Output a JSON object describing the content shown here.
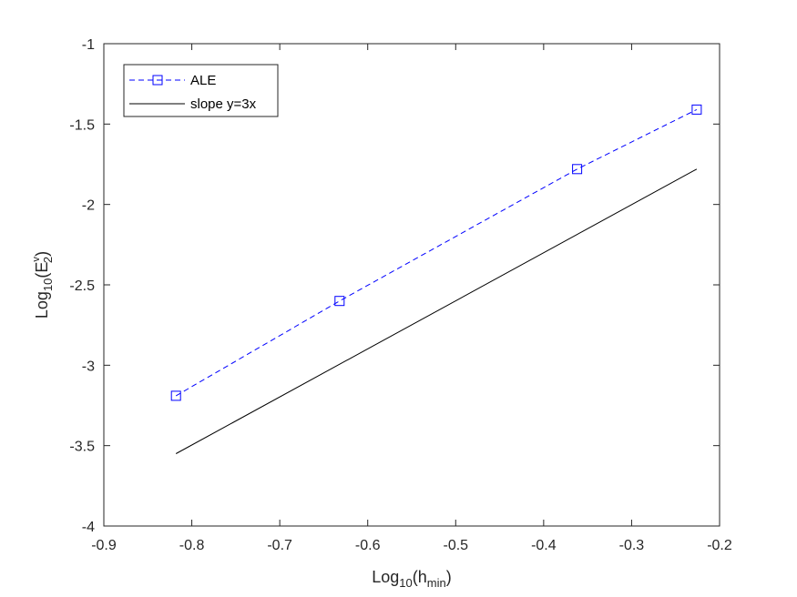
{
  "chart_data": {
    "type": "line",
    "xlabel": {
      "base": "Log",
      "base_sub": "10",
      "open": "(h",
      "var_sub": "min",
      "close": ")"
    },
    "ylabel": {
      "base": "Log",
      "base_sub": "10",
      "open": "(E",
      "var_sub": "2",
      "var_sup": "v",
      "close": ")"
    },
    "xlim": [
      -0.9,
      -0.2
    ],
    "ylim": [
      -4,
      -1
    ],
    "xticks": [
      -0.9,
      -0.8,
      -0.7,
      -0.6,
      -0.5,
      -0.4,
      -0.3,
      -0.2
    ],
    "yticks": [
      -4,
      -3.5,
      -3,
      -2.5,
      -2,
      -1.5,
      -1
    ],
    "xtick_labels": [
      "-0.9",
      "-0.8",
      "-0.7",
      "-0.6",
      "-0.5",
      "-0.4",
      "-0.3",
      "-0.2"
    ],
    "ytick_labels": [
      "-4",
      "-3.5",
      "-3",
      "-2.5",
      "-2",
      "-1.5",
      "-1"
    ],
    "grid": false,
    "legend_position": "top-left",
    "series": [
      {
        "name": "ALE",
        "color": "#0000ff",
        "line_style": "dashed",
        "marker": "square",
        "x": [
          -0.818,
          -0.632,
          -0.362,
          -0.226
        ],
        "y": [
          -3.19,
          -2.6,
          -1.78,
          -1.41
        ]
      },
      {
        "name": "slope y=3x",
        "color": "#000000",
        "line_style": "solid",
        "marker": "none",
        "x": [
          -0.818,
          -0.226
        ],
        "y": [
          -3.55,
          -1.78
        ]
      }
    ]
  }
}
